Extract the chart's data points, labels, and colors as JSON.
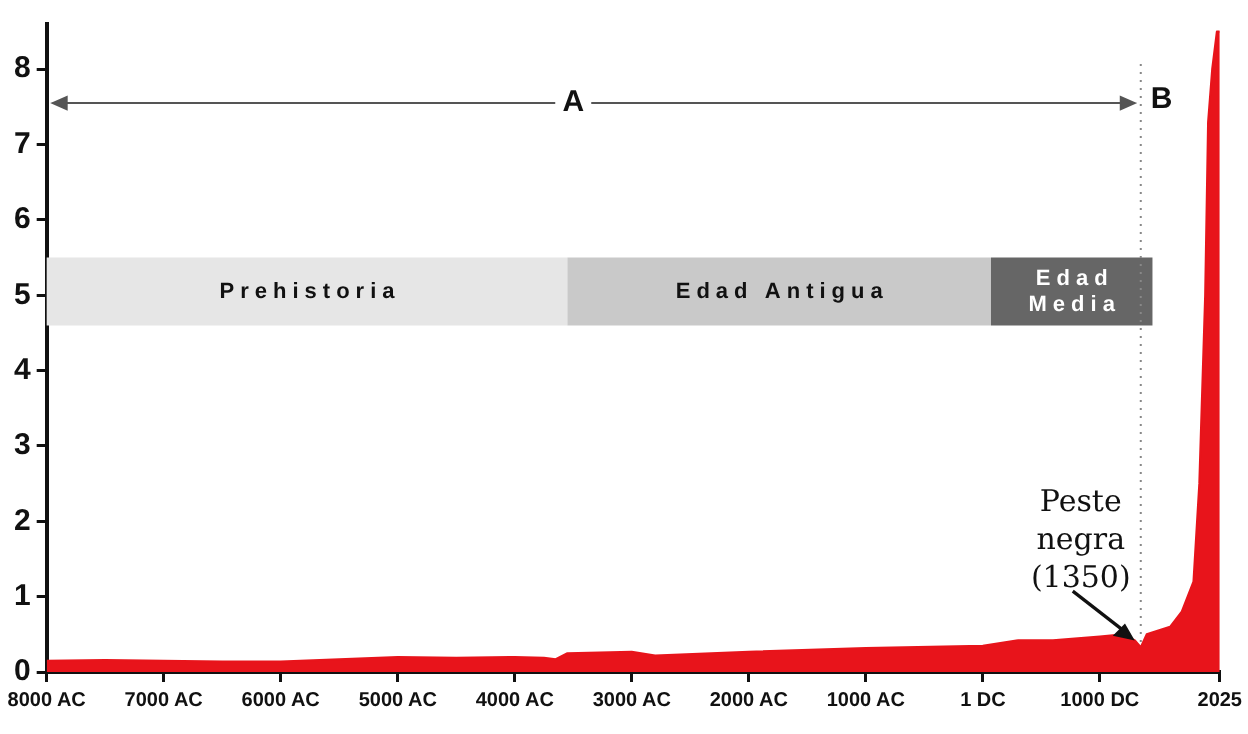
{
  "chart_data": {
    "type": "area",
    "x": [
      -8000,
      -7500,
      -7000,
      -6500,
      -6000,
      -5500,
      -5000,
      -4500,
      -4000,
      -3750,
      -3650,
      -3550,
      -3000,
      -2800,
      -2000,
      -1000,
      0,
      300,
      600,
      1000,
      1200,
      1300,
      1350,
      1400,
      1500,
      1600,
      1700,
      1800,
      1850,
      1900,
      1925,
      1960,
      2000,
      2025
    ],
    "series": [
      {
        "color": "#e8141b",
        "values": [
          0.15,
          0.16,
          0.15,
          0.14,
          0.14,
          0.17,
          0.2,
          0.19,
          0.2,
          0.19,
          0.17,
          0.25,
          0.27,
          0.22,
          0.27,
          0.32,
          0.35,
          0.42,
          0.42,
          0.47,
          0.5,
          0.42,
          0.33,
          0.5,
          0.55,
          0.6,
          0.8,
          1.2,
          2.5,
          5,
          7.3,
          8,
          8.5,
          8.5
        ]
      }
    ],
    "xlim": [
      -8000,
      2025
    ],
    "xticks": [
      {
        "value": -8000,
        "label": "8000 AC"
      },
      {
        "value": -7000,
        "label": "7000 AC"
      },
      {
        "value": -6000,
        "label": "6000 AC"
      },
      {
        "value": -5000,
        "label": "5000 AC"
      },
      {
        "value": -4000,
        "label": "4000 AC"
      },
      {
        "value": -3000,
        "label": "3000 AC"
      },
      {
        "value": -2000,
        "label": "2000 AC"
      },
      {
        "value": -1000,
        "label": "1000 AC"
      },
      {
        "value": 1,
        "label": "1 DC"
      },
      {
        "value": 1000,
        "label": "1000 DC"
      },
      2025
    ],
    "ylim": [
      0,
      8.6
    ],
    "yticks": [
      0,
      1,
      2,
      3,
      4,
      5,
      6,
      7,
      8
    ],
    "ref_lines": [
      {
        "axis": "x",
        "value": 1350,
        "label": "B",
        "line_style": "dotted",
        "color": "#888888"
      }
    ],
    "bands": [
      {
        "axis": "x",
        "from": -8000,
        "to": -3550,
        "label": "Prehistoria",
        "color": "#e6e6e6"
      },
      {
        "axis": "x",
        "from": -3550,
        "to": 70,
        "label": "Edad Antigua",
        "color": "#c9c9c9"
      },
      {
        "axis": "x",
        "from": 70,
        "to": 1450,
        "label": "Edad Media",
        "color": "#666666"
      }
    ],
    "annotations": [
      {
        "text": "A",
        "x": -3500,
        "y": 7.55
      },
      {
        "text": "Peste negra (1350)",
        "x": 1350,
        "y": 0.33
      }
    ]
  }
}
